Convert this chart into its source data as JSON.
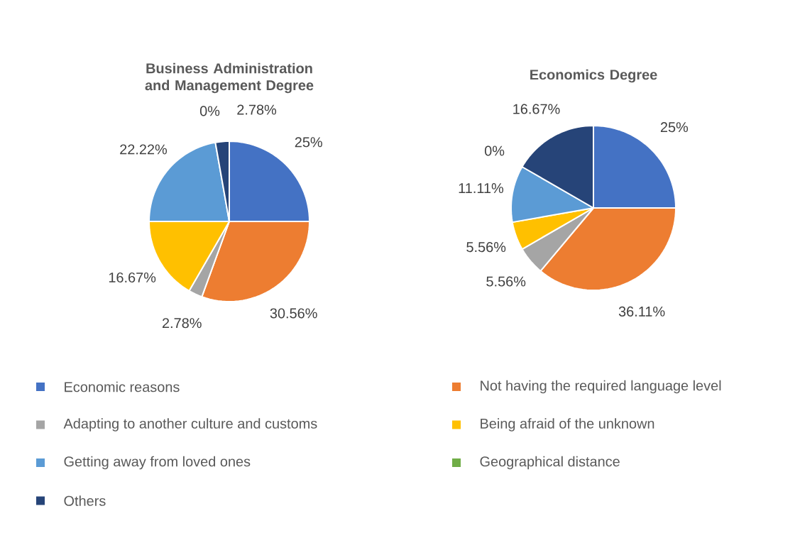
{
  "chart_data": [
    {
      "type": "pie",
      "title": "Business Administration and Management Degree",
      "categories": [
        "Economic reasons",
        "Not having the required language level",
        "Adapting to another culture and customs",
        "Being afraid of the unknown",
        "Getting away from loved ones",
        "Geographical distance",
        "Others"
      ],
      "values": [
        25,
        30.56,
        2.78,
        16.67,
        22.22,
        0,
        2.78
      ],
      "value_labels": [
        "25%",
        "30.56%",
        "2.78%",
        "16.67%",
        "22.22%",
        "0%",
        "2.78%"
      ],
      "colors": [
        "#4472c4",
        "#ed7d31",
        "#a5a5a5",
        "#ffc000",
        "#5b9bd5",
        "#70ad47",
        "#264478"
      ],
      "legend": "bottom"
    },
    {
      "type": "pie",
      "title": "Economics Degree",
      "categories": [
        null,
        null,
        null,
        null,
        null,
        null,
        null
      ],
      "values": [
        25,
        36.11,
        5.56,
        5.56,
        11.11,
        0,
        16.67
      ],
      "value_labels": [
        "25%",
        "36.11%",
        "5.56%",
        "5.56%",
        "11.11%",
        "0%",
        "16.67%"
      ],
      "colors": [
        "#4472c4",
        "#ed7d31",
        "#a5a5a5",
        "#ffc000",
        "#5b9bd5",
        "#70ad47",
        "#264478"
      ]
    }
  ]
}
